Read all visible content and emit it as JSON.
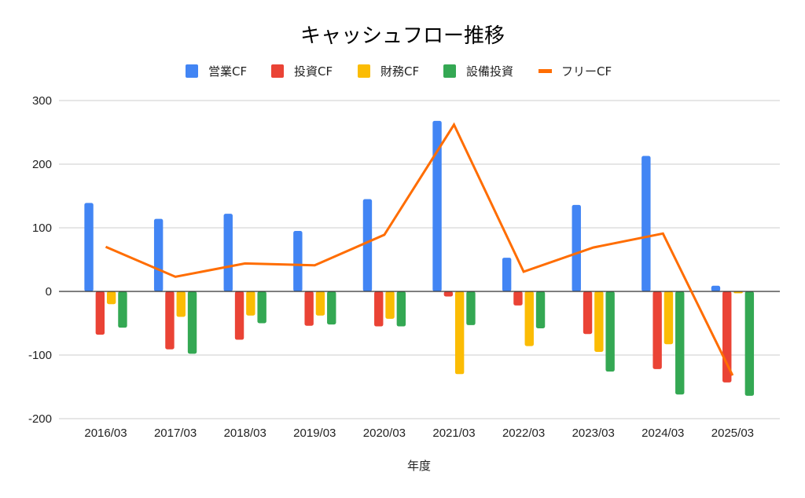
{
  "chart_data": {
    "type": "bar",
    "title": "キャッシュフロー推移",
    "xlabel": "年度",
    "ylabel": "",
    "ylim": [
      -200,
      300
    ],
    "yticks": [
      300,
      200,
      100,
      0,
      -100,
      -200
    ],
    "yticklabels": [
      "300",
      "200",
      "100",
      "0",
      "-100",
      "-200"
    ],
    "grid": true,
    "legend_position": "top",
    "categories": [
      "2016/03",
      "2017/03",
      "2018/03",
      "2019/03",
      "2020/03",
      "2021/03",
      "2022/03",
      "2023/03",
      "2024/03",
      "2025/03"
    ],
    "series": [
      {
        "name": "営業CF",
        "type": "bar",
        "color": "#4285f4",
        "values": [
          139,
          114,
          122,
          95,
          145,
          268,
          53,
          136,
          213,
          9
        ]
      },
      {
        "name": "投資CF",
        "type": "bar",
        "color": "#ea4335",
        "values": [
          -68,
          -91,
          -76,
          -54,
          -55,
          -8,
          -22,
          -67,
          -122,
          -143
        ]
      },
      {
        "name": "財務CF",
        "type": "bar",
        "color": "#fbbc04",
        "values": [
          -20,
          -40,
          -38,
          -38,
          -43,
          -130,
          -86,
          -95,
          -83,
          -3
        ]
      },
      {
        "name": "設備投資",
        "type": "bar",
        "color": "#34a853",
        "values": [
          -57,
          -98,
          -50,
          -52,
          -55,
          -53,
          -58,
          -126,
          -162,
          -164
        ]
      },
      {
        "name": "フリーCF",
        "type": "line",
        "color": "#ff6d01",
        "values": [
          70,
          23,
          44,
          41,
          89,
          262,
          31,
          69,
          91,
          -132
        ]
      }
    ]
  }
}
